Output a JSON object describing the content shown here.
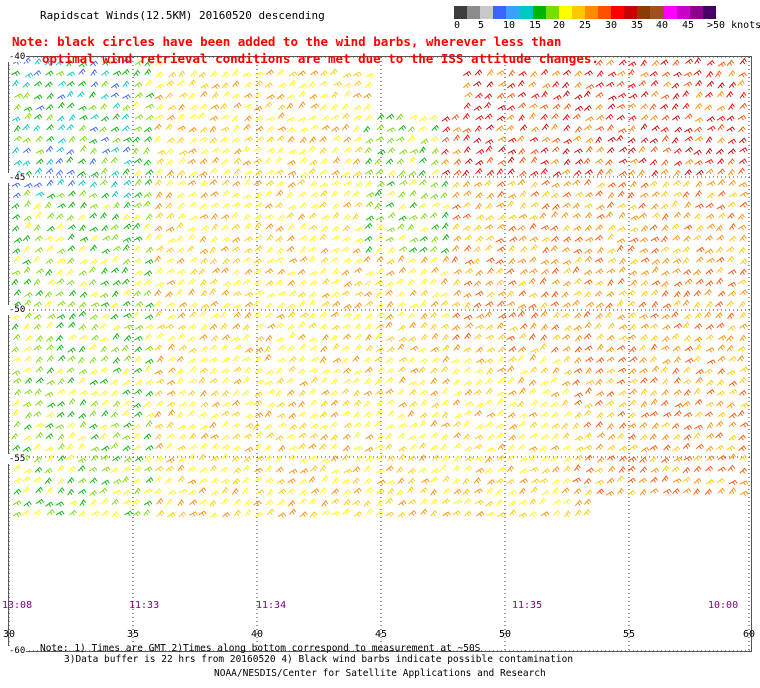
{
  "title": "Rapidscat Winds(12.5KM) 20160520 descending",
  "note_line1": "Note: black circles have been added to the wind barbs, wherever less than",
  "note_line2": "optimal wind retrieval conditions are met due to the ISS attitude changes.",
  "colorbar": {
    "colors": [
      "#3c3c3c",
      "#8c8c8c",
      "#c8c8c8",
      "#3c64ff",
      "#3ca0ff",
      "#00c8c8",
      "#00b400",
      "#78dc00",
      "#ffff00",
      "#ffc800",
      "#ff8c00",
      "#ff5000",
      "#ff0000",
      "#c80000",
      "#8c3c00",
      "#a0501e",
      "#ff00ff",
      "#c800c8",
      "#8c008c",
      "#460064"
    ],
    "labels": [
      "0",
      "5",
      "10",
      "15",
      "20",
      "25",
      "30",
      "35",
      "40",
      "45",
      ">50 knots"
    ]
  },
  "latitudes": [
    "-40",
    "-45",
    "-50",
    "-55",
    "-60"
  ],
  "longitudes": [
    "30",
    "35",
    "40",
    "45",
    "50",
    "55",
    "60"
  ],
  "pass_times": [
    "13:08",
    "11:33",
    "11:34",
    "11:35",
    "10:00"
  ],
  "footnote_line1": "Note: 1) Times are GMT 2)Times along bottom correspond to measurement at ~50S",
  "footnote_line2": "3)Data buffer is 22 hrs from 20160520 4) Black wind barbs indicate possible contamination",
  "credit": "NOAA/NESDIS/Center for Satellite Applications and Research"
}
